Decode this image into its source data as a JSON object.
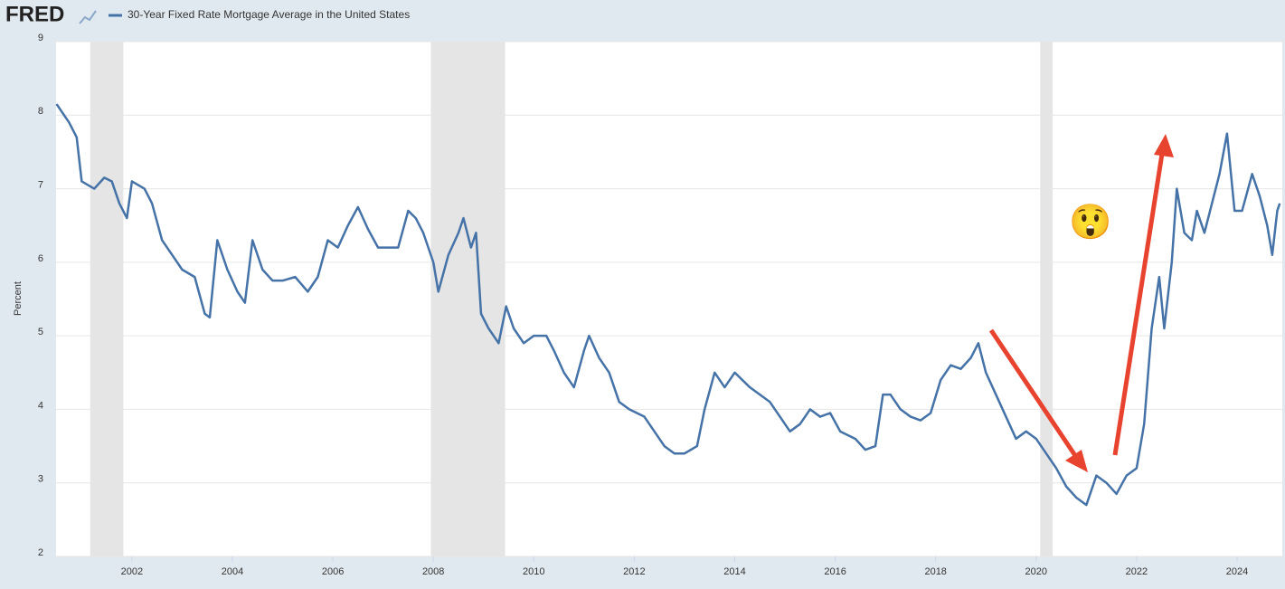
{
  "logo": "FRED",
  "chart_data": {
    "type": "line",
    "ylabel": "Percent",
    "annotation": "😲",
    "series": [
      {
        "name": "30-Year Fixed Rate Mortgage Average in the United States",
        "color": "#4572a7",
        "x": [
          2000.5,
          2000.75,
          2000.9,
          2001.0,
          2001.25,
          2001.45,
          2001.6,
          2001.75,
          2001.9,
          2002.0,
          2002.25,
          2002.4,
          2002.6,
          2002.8,
          2003.0,
          2003.25,
          2003.45,
          2003.55,
          2003.7,
          2003.9,
          2004.1,
          2004.25,
          2004.4,
          2004.6,
          2004.8,
          2005.0,
          2005.25,
          2005.5,
          2005.7,
          2005.9,
          2006.1,
          2006.3,
          2006.5,
          2006.7,
          2006.9,
          2007.1,
          2007.3,
          2007.5,
          2007.65,
          2007.8,
          2008.0,
          2008.1,
          2008.3,
          2008.5,
          2008.6,
          2008.75,
          2008.85,
          2008.95,
          2009.1,
          2009.3,
          2009.45,
          2009.6,
          2009.8,
          2010.0,
          2010.25,
          2010.4,
          2010.6,
          2010.8,
          2011.0,
          2011.1,
          2011.3,
          2011.5,
          2011.7,
          2011.9,
          2012.2,
          2012.4,
          2012.6,
          2012.8,
          2013.0,
          2013.25,
          2013.4,
          2013.6,
          2013.8,
          2014.0,
          2014.3,
          2014.5,
          2014.7,
          2014.9,
          2015.1,
          2015.3,
          2015.5,
          2015.7,
          2015.9,
          2016.1,
          2016.4,
          2016.6,
          2016.8,
          2016.95,
          2017.1,
          2017.3,
          2017.5,
          2017.7,
          2017.9,
          2018.1,
          2018.3,
          2018.5,
          2018.7,
          2018.85,
          2019.0,
          2019.2,
          2019.4,
          2019.6,
          2019.8,
          2020.0,
          2020.2,
          2020.4,
          2020.6,
          2020.8,
          2021.0,
          2021.2,
          2021.4,
          2021.6,
          2021.8,
          2022.0,
          2022.15,
          2022.3,
          2022.45,
          2022.55,
          2022.7,
          2022.8,
          2022.95,
          2023.1,
          2023.2,
          2023.35,
          2023.5,
          2023.65,
          2023.8,
          2023.95,
          2024.1,
          2024.3,
          2024.45,
          2024.6,
          2024.7,
          2024.8,
          2024.85
        ],
        "values": [
          8.15,
          7.9,
          7.7,
          7.1,
          7.0,
          7.15,
          7.1,
          6.8,
          6.6,
          7.1,
          7.0,
          6.8,
          6.3,
          6.1,
          5.9,
          5.8,
          5.3,
          5.25,
          6.3,
          5.9,
          5.6,
          5.45,
          6.3,
          5.9,
          5.75,
          5.75,
          5.8,
          5.6,
          5.8,
          6.3,
          6.2,
          6.5,
          6.75,
          6.45,
          6.2,
          6.2,
          6.2,
          6.7,
          6.6,
          6.4,
          6.0,
          5.6,
          6.1,
          6.4,
          6.6,
          6.2,
          6.4,
          5.3,
          5.1,
          4.9,
          5.4,
          5.1,
          4.9,
          5.0,
          5.0,
          4.8,
          4.5,
          4.3,
          4.8,
          5.0,
          4.7,
          4.5,
          4.1,
          4.0,
          3.9,
          3.7,
          3.5,
          3.4,
          3.4,
          3.5,
          4.0,
          4.5,
          4.3,
          4.5,
          4.3,
          4.2,
          4.1,
          3.9,
          3.7,
          3.8,
          4.0,
          3.9,
          3.95,
          3.7,
          3.6,
          3.45,
          3.5,
          4.2,
          4.2,
          4.0,
          3.9,
          3.85,
          3.95,
          4.4,
          4.6,
          4.55,
          4.7,
          4.9,
          4.5,
          4.2,
          3.9,
          3.6,
          3.7,
          3.6,
          3.4,
          3.2,
          2.95,
          2.8,
          2.7,
          3.1,
          3.0,
          2.85,
          3.1,
          3.2,
          3.8,
          5.1,
          5.8,
          5.1,
          6.0,
          7.0,
          6.4,
          6.3,
          6.7,
          6.4,
          6.8,
          7.2,
          7.75,
          6.7,
          6.7,
          7.2,
          6.9,
          6.5,
          6.1,
          6.7,
          6.8
        ]
      }
    ],
    "recessions": [
      [
        2001.17,
        2001.83
      ],
      [
        2007.95,
        2009.43
      ],
      [
        2020.08,
        2020.33
      ]
    ],
    "xlim": [
      2000.49,
      2024.9
    ],
    "xticks": [
      2002,
      2004,
      2006,
      2008,
      2010,
      2012,
      2014,
      2016,
      2018,
      2020,
      2022,
      2024
    ],
    "ylim": [
      2,
      9
    ],
    "yticks": [
      2,
      3,
      4,
      5,
      6,
      7,
      8,
      9
    ],
    "grid": true
  }
}
